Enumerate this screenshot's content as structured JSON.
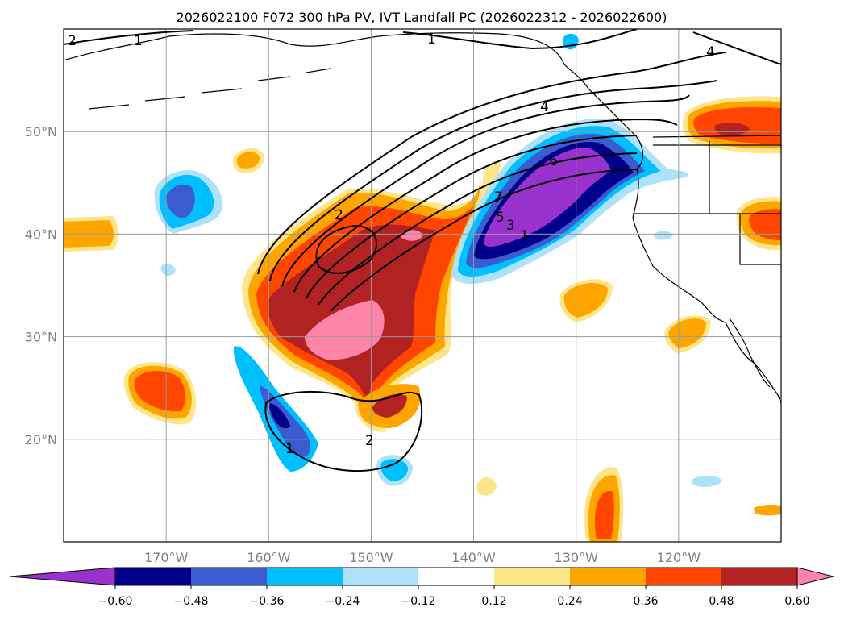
{
  "chart_data": {
    "type": "heatmap",
    "title": "2026022100 F072 300 hPa PV, IVT Landfall PC (2026022312 - 2026022600)",
    "xlabel": "",
    "ylabel": "",
    "xlim": [
      -180,
      -110
    ],
    "ylim": [
      10,
      60
    ],
    "grid": true,
    "x_ticks": [
      {
        "value": -170,
        "label": "170°W"
      },
      {
        "value": -160,
        "label": "160°W"
      },
      {
        "value": -150,
        "label": "150°W"
      },
      {
        "value": -140,
        "label": "140°W"
      },
      {
        "value": -130,
        "label": "130°W"
      },
      {
        "value": -120,
        "label": "120°W"
      }
    ],
    "y_ticks": [
      {
        "value": 20,
        "label": "20°N"
      },
      {
        "value": 30,
        "label": "30°N"
      },
      {
        "value": 40,
        "label": "40°N"
      },
      {
        "value": 50,
        "label": "50°N"
      }
    ],
    "colorbar": {
      "levels": [
        -0.6,
        -0.48,
        -0.36,
        -0.24,
        -0.12,
        0.12,
        0.24,
        0.36,
        0.48,
        0.6
      ],
      "labels": [
        "−0.60",
        "−0.48",
        "−0.36",
        "−0.24",
        "−0.12",
        "0.12",
        "0.24",
        "0.36",
        "0.48",
        "0.60"
      ],
      "colors": [
        "#9932cc",
        "#00008b",
        "#3b5bd0",
        "#00bfff",
        "#aee2fa",
        "#ffffff",
        "#fde58a",
        "#ffa500",
        "#ff4500",
        "#b22222",
        "#ff85a8"
      ],
      "extend": "both"
    },
    "contour_labels": [
      "2",
      "1",
      "1",
      "4",
      "4",
      "6",
      "7",
      "5",
      "3",
      "1",
      "2",
      "2",
      "1"
    ],
    "features": [
      {
        "name": "trough-positive-core",
        "lon": -150,
        "lat": 31,
        "value": 0.62
      },
      {
        "name": "ridge-negative-core",
        "lon": -133,
        "lat": 44,
        "value": -0.62
      },
      {
        "name": "subtropical-negative",
        "lon": -158,
        "lat": 21,
        "value": -0.5
      },
      {
        "name": "pacific-nw-positive",
        "lon": -116,
        "lat": 50,
        "value": 0.5
      }
    ]
  }
}
